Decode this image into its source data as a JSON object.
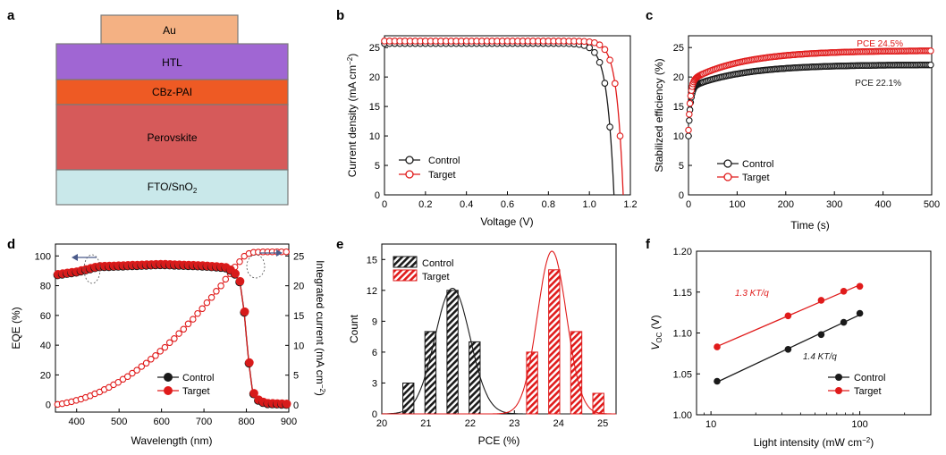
{
  "panels": {
    "a": "a",
    "b": "b",
    "c": "c",
    "d": "d",
    "e": "e",
    "f": "f"
  },
  "colors": {
    "control": "#1a1a1a",
    "target": "#e01b1b",
    "au": "#f4b183",
    "htl": "#a066d3",
    "cbz": "#ee5a24",
    "perov": "#d65a5a",
    "fto": "#c9e8ea"
  },
  "chart_data": [
    {
      "panel": "a",
      "type": "diagram",
      "layers": [
        {
          "name": "Au",
          "text": "Au"
        },
        {
          "name": "HTL",
          "text": "HTL"
        },
        {
          "name": "CBz-PAI",
          "text": "CBz-PAI"
        },
        {
          "name": "Perovskite",
          "text": "Perovskite"
        },
        {
          "name": "FTO/SnO2",
          "text": "FTO/SnO",
          "sub": "2"
        }
      ]
    },
    {
      "panel": "b",
      "type": "scatter",
      "xlabel": "Voltage (V)",
      "ylabel": "Current density (mA cm",
      "ylabel_sup": "−2",
      "ylabel_end": ")",
      "xlim": [
        0,
        1.2
      ],
      "ylim": [
        0,
        27
      ],
      "xticks": [
        "0",
        "0.2",
        "0.4",
        "0.6",
        "0.8",
        "1.0",
        "1.2"
      ],
      "yticks": [
        "0",
        "5",
        "10",
        "15",
        "20",
        "25"
      ],
      "legend": [
        "Control",
        "Target"
      ],
      "series": [
        {
          "name": "Control",
          "Jsc": 25.7,
          "Voc": 1.12,
          "n": 1.3
        },
        {
          "name": "Target",
          "Jsc": 26.1,
          "Voc": 1.165,
          "n": 1.2
        }
      ]
    },
    {
      "panel": "c",
      "type": "scatter",
      "xlabel": "Time (s)",
      "ylabel": "Stabilized efficiency (%)",
      "xlim": [
        0,
        500
      ],
      "ylim": [
        0,
        27
      ],
      "xticks": [
        "0",
        "100",
        "200",
        "300",
        "400",
        "500"
      ],
      "yticks": [
        "0",
        "5",
        "10",
        "15",
        "20",
        "25"
      ],
      "legend": [
        "Control",
        "Target"
      ],
      "annotations": [
        "PCE 24.5%",
        "PCE 22.1%"
      ],
      "series": [
        {
          "name": "Control",
          "start": 10,
          "final": 22.1
        },
        {
          "name": "Target",
          "start": 11,
          "final": 24.5
        }
      ]
    },
    {
      "panel": "d",
      "type": "line",
      "xlabel": "Wavelength (nm)",
      "ylabel": "EQE (%)",
      "y2label": "Integrated current (mA cm",
      "y2label_sup": "−2",
      "y2label_end": ")",
      "xlim": [
        350,
        900
      ],
      "ylim": [
        -5,
        108
      ],
      "y2lim": [
        -1.2,
        27
      ],
      "xticks": [
        "400",
        "500",
        "600",
        "700",
        "800",
        "900"
      ],
      "yticks": [
        "0",
        "20",
        "40",
        "60",
        "80",
        "100"
      ],
      "y2ticks": [
        "0",
        "5",
        "10",
        "15",
        "20",
        "25"
      ],
      "legend": [
        "Control",
        "Target"
      ],
      "eqe_profile": [
        [
          350,
          87
        ],
        [
          400,
          89
        ],
        [
          450,
          92.5
        ],
        [
          500,
          93
        ],
        [
          550,
          93.5
        ],
        [
          600,
          94
        ],
        [
          650,
          93.5
        ],
        [
          700,
          93
        ],
        [
          750,
          92
        ],
        [
          770,
          89
        ],
        [
          785,
          82
        ],
        [
          795,
          62
        ],
        [
          805,
          30
        ],
        [
          815,
          8
        ],
        [
          830,
          2
        ],
        [
          850,
          0.5
        ],
        [
          900,
          0
        ]
      ],
      "jsc_series": {
        "name": "Integrated Jsc (Target)",
        "final": 25.7
      }
    },
    {
      "panel": "e",
      "type": "bar",
      "xlabel": "PCE (%)",
      "ylabel": "Count",
      "xlim": [
        20,
        25.3
      ],
      "ylim": [
        0,
        16.5
      ],
      "xticks": [
        "20",
        "21",
        "22",
        "23",
        "24",
        "25"
      ],
      "yticks": [
        "0",
        "3",
        "6",
        "9",
        "12",
        "15"
      ],
      "legend": [
        "Control",
        "Target"
      ],
      "series": [
        {
          "name": "Control",
          "bins": [
            20.6,
            21.1,
            21.6,
            22.1
          ],
          "values": [
            3,
            8,
            12,
            7
          ],
          "fit_mu": 21.6,
          "fit_sigma": 0.4,
          "fit_peak": 12.2
        },
        {
          "name": "Target",
          "bins": [
            23.4,
            23.9,
            24.4,
            24.9
          ],
          "values": [
            6,
            14,
            8,
            2
          ],
          "fit_mu": 23.85,
          "fit_sigma": 0.33,
          "fit_peak": 15.8
        }
      ]
    },
    {
      "panel": "f",
      "type": "scatter",
      "xlabel": "Light intensity (mW cm",
      "xlabel_sup": "−2",
      "xlabel_end": ")",
      "ylabel": "V",
      "ylabel_sub": "OC",
      "ylabel_end": " (V)",
      "xscale": "log",
      "xlim": [
        8,
        300
      ],
      "ylim": [
        1.0,
        1.2
      ],
      "xticks": [
        "10",
        "100"
      ],
      "yticks": [
        "1.00",
        "1.05",
        "1.10",
        "1.15",
        "1.20"
      ],
      "legend": [
        "Control",
        "Target"
      ],
      "annotations": [
        "1.3 KT/q",
        "1.4 KT/q"
      ],
      "series": [
        {
          "name": "Control",
          "x": [
            11,
            33,
            55,
            78,
            100
          ],
          "y": [
            1.041,
            1.08,
            1.098,
            1.113,
            1.124
          ]
        },
        {
          "name": "Target",
          "x": [
            11,
            33,
            55,
            78,
            100
          ],
          "y": [
            1.083,
            1.121,
            1.14,
            1.151,
            1.157
          ]
        }
      ]
    }
  ]
}
